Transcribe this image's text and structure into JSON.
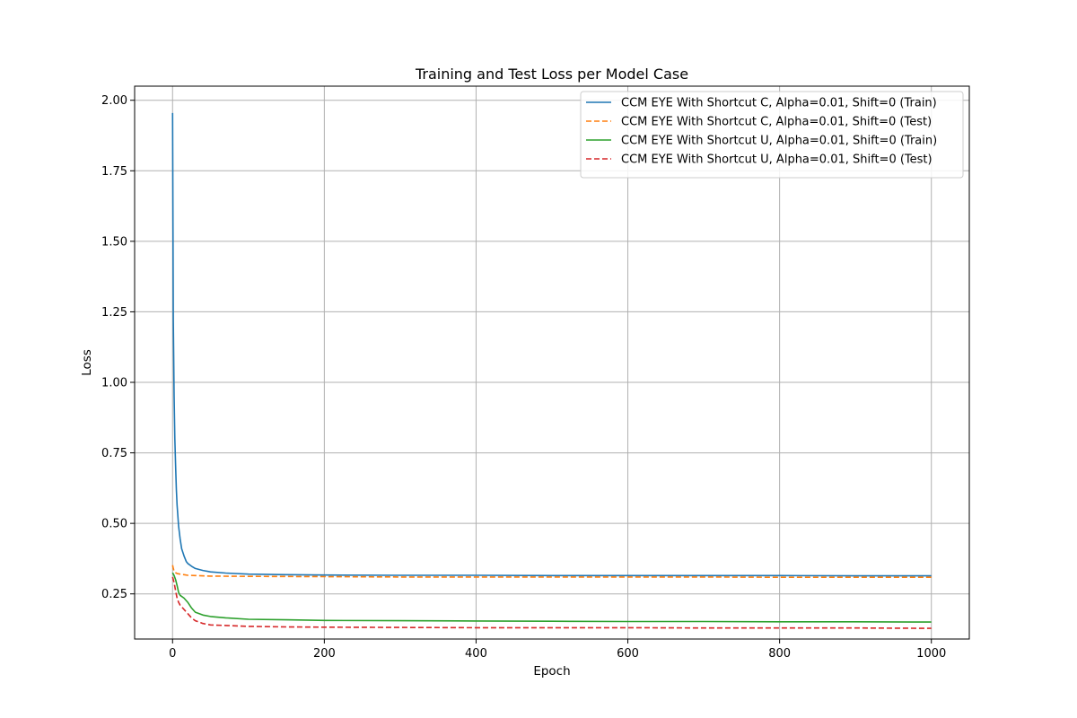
{
  "chart_data": {
    "type": "line",
    "title": "Training and Test Loss per Model Case",
    "xlabel": "Epoch",
    "ylabel": "Loss",
    "xlim": [
      -50,
      1050
    ],
    "ylim": [
      0.09,
      2.05
    ],
    "xticks": [
      0,
      200,
      400,
      600,
      800,
      1000
    ],
    "yticks": [
      0.25,
      0.5,
      0.75,
      1.0,
      1.25,
      1.5,
      1.75,
      2.0
    ],
    "xtick_labels": [
      "0",
      "200",
      "400",
      "600",
      "800",
      "1000"
    ],
    "ytick_labels": [
      "0.25",
      "0.50",
      "0.75",
      "1.00",
      "1.25",
      "1.50",
      "1.75",
      "2.00"
    ],
    "grid": true,
    "legend_position": "top-right",
    "series": [
      {
        "name": "CCM EYE With Shortcut C, Alpha=0.01, Shift=0 (Train)",
        "color": "#1f77b4",
        "dash": "solid",
        "x": [
          0,
          1,
          2,
          3,
          4,
          5,
          6,
          8,
          10,
          12,
          15,
          18,
          20,
          25,
          30,
          40,
          50,
          70,
          100,
          150,
          200,
          300,
          400,
          500,
          600,
          700,
          800,
          900,
          1000
        ],
        "y": [
          1.955,
          1.22,
          0.95,
          0.8,
          0.7,
          0.62,
          0.565,
          0.49,
          0.445,
          0.41,
          0.385,
          0.365,
          0.358,
          0.348,
          0.34,
          0.333,
          0.328,
          0.324,
          0.32,
          0.318,
          0.317,
          0.316,
          0.316,
          0.315,
          0.315,
          0.315,
          0.315,
          0.314,
          0.314
        ]
      },
      {
        "name": "CCM EYE With Shortcut C, Alpha=0.01, Shift=0 (Test)",
        "color": "#ff7f0e",
        "dash": "dashed",
        "x": [
          0,
          1,
          2,
          4,
          6,
          10,
          15,
          20,
          30,
          50,
          100,
          200,
          300,
          400,
          500,
          600,
          700,
          800,
          900,
          1000
        ],
        "y": [
          0.352,
          0.34,
          0.33,
          0.325,
          0.322,
          0.32,
          0.318,
          0.316,
          0.315,
          0.313,
          0.312,
          0.311,
          0.31,
          0.31,
          0.31,
          0.31,
          0.31,
          0.309,
          0.309,
          0.309
        ]
      },
      {
        "name": "CCM EYE With Shortcut U, Alpha=0.01, Shift=0 (Train)",
        "color": "#2ca02c",
        "dash": "solid",
        "x": [
          0,
          2,
          4,
          6,
          8,
          10,
          15,
          20,
          25,
          30,
          40,
          50,
          70,
          100,
          150,
          200,
          300,
          400,
          500,
          600,
          700,
          800,
          900,
          1000
        ],
        "y": [
          0.325,
          0.315,
          0.3,
          0.28,
          0.255,
          0.245,
          0.235,
          0.22,
          0.2,
          0.185,
          0.175,
          0.17,
          0.165,
          0.16,
          0.158,
          0.156,
          0.155,
          0.154,
          0.153,
          0.152,
          0.152,
          0.151,
          0.151,
          0.15
        ]
      },
      {
        "name": "CCM EYE With Shortcut U, Alpha=0.01, Shift=0 (Test)",
        "color": "#d62728",
        "dash": "dashed",
        "x": [
          0,
          2,
          4,
          6,
          8,
          10,
          15,
          20,
          25,
          30,
          40,
          50,
          70,
          100,
          150,
          200,
          300,
          400,
          500,
          600,
          700,
          800,
          900,
          1000
        ],
        "y": [
          0.31,
          0.29,
          0.26,
          0.235,
          0.22,
          0.21,
          0.195,
          0.18,
          0.165,
          0.155,
          0.145,
          0.14,
          0.138,
          0.135,
          0.133,
          0.132,
          0.131,
          0.13,
          0.13,
          0.13,
          0.129,
          0.129,
          0.129,
          0.128
        ]
      }
    ]
  }
}
